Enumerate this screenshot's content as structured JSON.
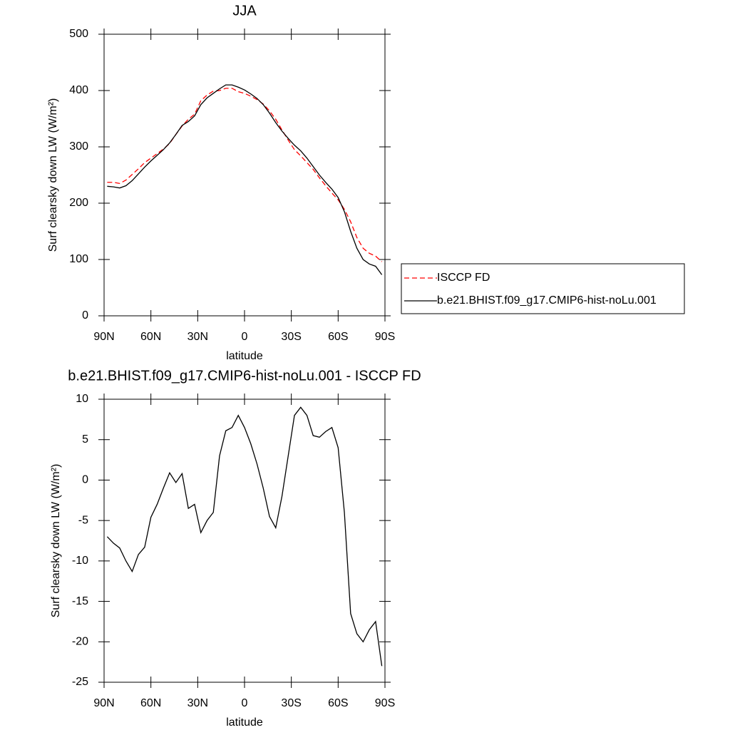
{
  "chart_data": [
    {
      "type": "line",
      "title": "JJA",
      "xlabel": "latitude",
      "ylabel": "Surf clearsky down LW (W/m²)",
      "x": [
        88,
        84,
        80,
        76,
        72,
        68,
        64,
        60,
        56,
        52,
        48,
        44,
        40,
        36,
        32,
        28,
        24,
        20,
        16,
        12,
        8,
        4,
        0,
        -4,
        -8,
        -12,
        -16,
        -20,
        -24,
        -28,
        -32,
        -36,
        -40,
        -44,
        -48,
        -52,
        -56,
        -60,
        -64,
        -68,
        -72,
        -76,
        -80,
        -84,
        -88
      ],
      "series": [
        {
          "name": "ISCCP FD",
          "color": "#ff0000",
          "dashed": true,
          "values": [
            237,
            237,
            235,
            241,
            251,
            261,
            272,
            280,
            288,
            296,
            306,
            322,
            337,
            349,
            358,
            382,
            392,
            399,
            400,
            404,
            404,
            398,
            395,
            390,
            384,
            376,
            364,
            349,
            330,
            312,
            295,
            284,
            272,
            260,
            245,
            231,
            218,
            206,
            189,
            167,
            139,
            120,
            111,
            106,
            96
          ]
        },
        {
          "name": "b.e21.BHIST.f09_g17.CMIP6-hist-noLu.001",
          "color": "#000000",
          "values": [
            230,
            229,
            227,
            231,
            240,
            252,
            264,
            275,
            285,
            295,
            307,
            322,
            338,
            345,
            355,
            375,
            387,
            395,
            403,
            410,
            410,
            406,
            401,
            394,
            386,
            375,
            360,
            343,
            328,
            315,
            303,
            293,
            280,
            265,
            250,
            237,
            225,
            210,
            185,
            150,
            120,
            100,
            92,
            88,
            73
          ]
        }
      ],
      "xlim": [
        90,
        -90
      ],
      "xticks": [
        {
          "value": 90,
          "label": "90N"
        },
        {
          "value": 60,
          "label": "60N"
        },
        {
          "value": 30,
          "label": "30N"
        },
        0,
        {
          "value": -30,
          "label": "30S"
        },
        {
          "value": -60,
          "label": "60S"
        },
        {
          "value": -90,
          "label": "90S"
        }
      ],
      "ylim": [
        0,
        500
      ],
      "yticks": [
        0,
        100,
        200,
        300,
        400,
        500
      ],
      "grid": false,
      "legend": "right"
    },
    {
      "type": "line",
      "title": "b.e21.BHIST.f09_g17.CMIP6-hist-noLu.001 - ISCCP FD",
      "xlabel": "latitude",
      "ylabel": "Surf clearsky down LW (W/m²)",
      "x": [
        88,
        84,
        80,
        76,
        72,
        68,
        64,
        60,
        56,
        52,
        48,
        44,
        40,
        36,
        32,
        28,
        24,
        20,
        16,
        12,
        8,
        4,
        0,
        -4,
        -8,
        -12,
        -16,
        -20,
        -24,
        -28,
        -32,
        -36,
        -40,
        -44,
        -48,
        -52,
        -56,
        -60,
        -64,
        -68,
        -72,
        -76,
        -80,
        -84,
        -88
      ],
      "series": [
        {
          "name": "b.e21.BHIST.f09_g17.CMIP6-hist-noLu.001 - ISCCP FD",
          "color": "#000000",
          "values": [
            -7,
            -7.8,
            -8.4,
            -10,
            -11.3,
            -9.2,
            -8.3,
            -4.6,
            -3,
            -1,
            0.9,
            -0.3,
            0.8,
            -3.5,
            -3,
            -6.5,
            -5,
            -4,
            3,
            6.1,
            6.5,
            8,
            6.5,
            4.5,
            2,
            -1,
            -4.5,
            -5.9,
            -2,
            3,
            8,
            9,
            8,
            5.5,
            5.3,
            6,
            6.5,
            4,
            -4,
            -16.5,
            -19,
            -20,
            -18.5,
            -17.5,
            -23
          ]
        }
      ],
      "xlim": [
        90,
        -90
      ],
      "xticks": [
        {
          "value": 90,
          "label": "90N"
        },
        {
          "value": 60,
          "label": "60N"
        },
        {
          "value": 30,
          "label": "30N"
        },
        0,
        {
          "value": -30,
          "label": "30S"
        },
        {
          "value": -60,
          "label": "60S"
        },
        {
          "value": -90,
          "label": "90S"
        }
      ],
      "ylim": [
        -25,
        10
      ],
      "yticks": [
        -25,
        -20,
        -15,
        -10,
        -5,
        0,
        5,
        10
      ],
      "grid": false
    }
  ]
}
